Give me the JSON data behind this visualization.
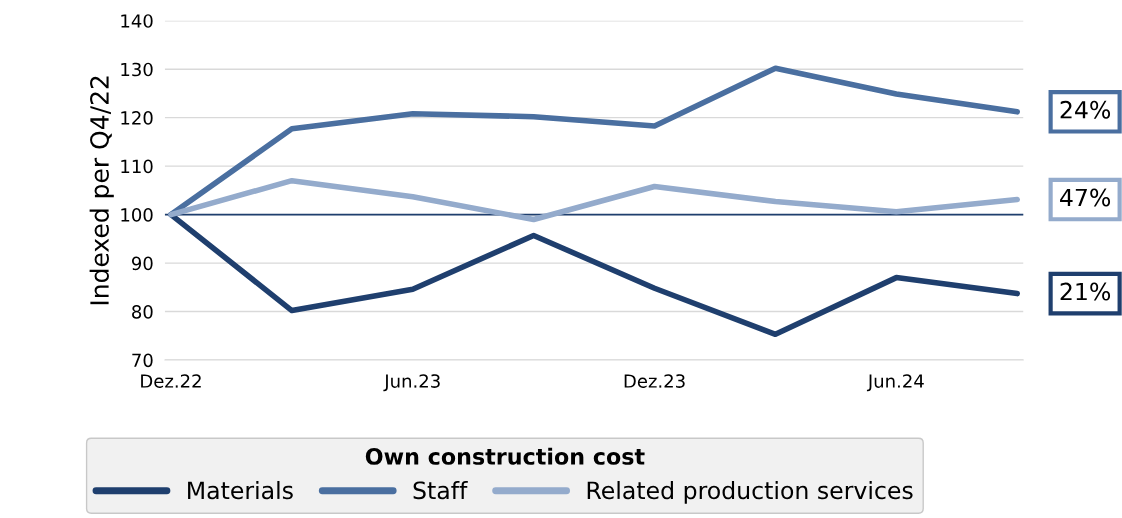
{
  "chart_data": {
    "type": "line",
    "ylabel": "Indexed per Q4/22",
    "categories": [
      "Dez.22",
      null,
      "Jun.23",
      null,
      "Dez.23",
      null,
      "Jun.24",
      null
    ],
    "series": [
      {
        "name": "Materials",
        "color": "#1f3f6e",
        "values": [
          100,
          80.2,
          84.6,
          95.7,
          84.8,
          75.3,
          87,
          83.7
        ]
      },
      {
        "name": "Staff",
        "color": "#4a6fa0",
        "values": [
          100,
          117.7,
          120.8,
          120.2,
          118.3,
          130.2,
          124.9,
          121.2
        ]
      },
      {
        "name": "Related production services",
        "color": "#94abcc",
        "values": [
          100,
          107,
          103.7,
          99,
          105.8,
          102.7,
          100.6,
          103.1
        ]
      }
    ],
    "ylim": [
      70,
      140
    ],
    "yticks": [
      70,
      80,
      90,
      100,
      110,
      120,
      130,
      140
    ],
    "grid": "y",
    "legend": "bottom",
    "legend_title": "Own construction cost",
    "line_style": "solid",
    "marker": "none",
    "ref_lines": [
      {
        "axis": "y",
        "value": 100,
        "color": "#1f3f6e"
      }
    ],
    "annotations": [
      "24%",
      "47%",
      "21%"
    ]
  }
}
